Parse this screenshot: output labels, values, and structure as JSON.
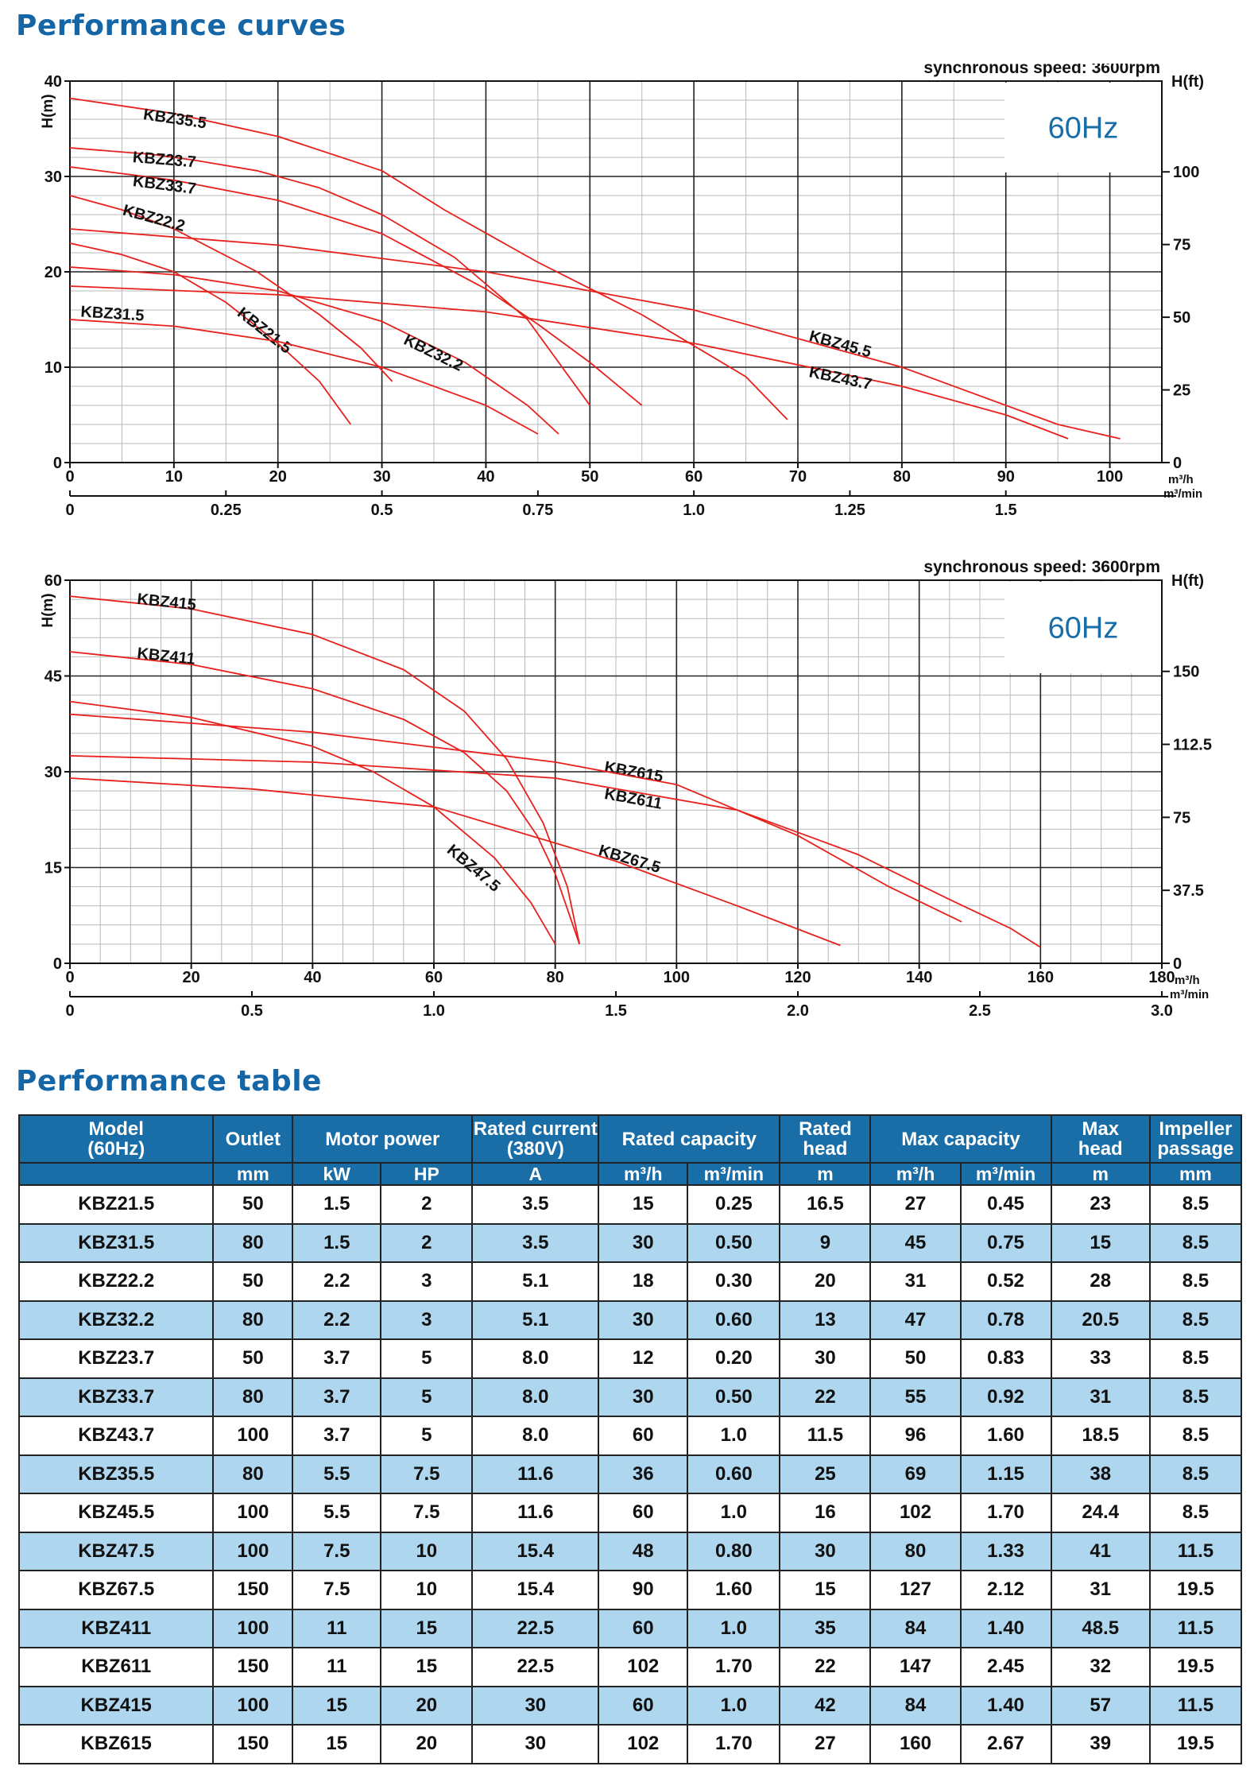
{
  "titles": {
    "curves": "Performance curves",
    "table": "Performance table"
  },
  "chart_data": [
    {
      "type": "line",
      "badge": "60Hz",
      "note": "synchronous speed: 3600rpm",
      "ylabel": "H(m)",
      "y2label": "H(ft)",
      "xunit": "m³/h",
      "x2unit": "m³/min",
      "xlim": [
        0,
        105
      ],
      "ylim": [
        0,
        40
      ],
      "xticks": [
        0,
        10,
        20,
        30,
        40,
        50,
        60,
        70,
        80,
        90,
        100
      ],
      "yticks": [
        0,
        10,
        20,
        30,
        40
      ],
      "y2ticks": [
        0,
        25,
        50,
        75,
        100
      ],
      "x2ticks": [
        0,
        0.25,
        0.5,
        0.75,
        1.0,
        1.25,
        1.5
      ],
      "x2tick_labels": [
        "0",
        "0.25",
        "0.5",
        "0.75",
        "1.0",
        "1.25",
        "1.5"
      ],
      "grid": true,
      "series": [
        {
          "name": "KBZ35.5",
          "x": [
            0,
            10,
            20,
            30,
            36,
            45,
            55,
            65,
            69
          ],
          "y": [
            38.2,
            36.6,
            34.2,
            30.6,
            26.5,
            21.0,
            15.5,
            9.0,
            4.5
          ],
          "label_pos": [
            7,
            36
          ]
        },
        {
          "name": "KBZ23.7",
          "x": [
            0,
            8,
            12,
            18,
            24,
            30,
            37,
            44,
            50
          ],
          "y": [
            33,
            32.3,
            31.7,
            30.6,
            28.8,
            26.0,
            21.5,
            15.0,
            6.0
          ],
          "label_pos": [
            6,
            31.5
          ]
        },
        {
          "name": "KBZ33.7",
          "x": [
            0,
            10,
            20,
            30,
            40,
            45,
            50,
            55
          ],
          "y": [
            31,
            29.6,
            27.5,
            24.0,
            18.2,
            14.5,
            10.5,
            6.0
          ],
          "label_pos": [
            6,
            29
          ]
        },
        {
          "name": "KBZ22.2",
          "x": [
            0,
            5,
            10,
            18,
            24,
            28,
            31
          ],
          "y": [
            28,
            26.5,
            24.5,
            20.0,
            15.5,
            12.0,
            8.5
          ],
          "label_pos": [
            5,
            26
          ]
        },
        {
          "name": "KBZ21.5",
          "x": [
            0,
            5,
            10,
            15,
            20,
            24,
            27
          ],
          "y": [
            23,
            21.8,
            20.0,
            16.8,
            12.5,
            8.5,
            4.0
          ],
          "label_pos": [
            16,
            15.5
          ]
        },
        {
          "name": "KBZ31.5",
          "x": [
            0,
            10,
            20,
            30,
            40,
            45
          ],
          "y": [
            15,
            14.3,
            12.7,
            10.0,
            6.0,
            3.0
          ],
          "label_pos": [
            1,
            15.3
          ]
        },
        {
          "name": "KBZ32.2",
          "x": [
            0,
            10,
            20,
            30,
            38,
            44,
            47
          ],
          "y": [
            20.5,
            19.7,
            18.0,
            14.8,
            10.5,
            6.0,
            3.0
          ],
          "label_pos": [
            32,
            12.5
          ]
        },
        {
          "name": "KBZ45.5",
          "x": [
            0,
            20,
            40,
            60,
            80,
            95,
            101
          ],
          "y": [
            24.5,
            22.8,
            20.0,
            16.0,
            10.0,
            4.0,
            2.5
          ],
          "label_pos": [
            71,
            12.8
          ]
        },
        {
          "name": "KBZ43.7",
          "x": [
            0,
            20,
            40,
            60,
            80,
            90,
            96
          ],
          "y": [
            18.5,
            17.6,
            15.8,
            12.5,
            8.0,
            5.0,
            2.5
          ],
          "label_pos": [
            71,
            9.0
          ]
        }
      ]
    },
    {
      "type": "line",
      "badge": "60Hz",
      "note": "synchronous speed: 3600rpm",
      "ylabel": "H(m)",
      "y2label": "H(ft)",
      "xunit": "m³/h",
      "x2unit": "m³/min",
      "xlim": [
        0,
        180
      ],
      "ylim": [
        0,
        60
      ],
      "xticks": [
        0,
        20,
        40,
        60,
        80,
        100,
        120,
        140,
        160,
        180
      ],
      "yticks": [
        0,
        15,
        30,
        45,
        60
      ],
      "y2ticks": [
        0,
        37.5,
        75,
        112.5,
        150
      ],
      "x2ticks": [
        0,
        0.5,
        1.0,
        1.5,
        2.0,
        2.5,
        3.0
      ],
      "x2tick_labels": [
        "0",
        "0.5",
        "1.0",
        "1.5",
        "2.0",
        "2.5",
        "3.0"
      ],
      "grid": true,
      "series": [
        {
          "name": "KBZ415",
          "x": [
            0,
            20,
            40,
            55,
            65,
            72,
            78,
            82,
            84
          ],
          "y": [
            57.5,
            55.5,
            51.5,
            46.0,
            39.5,
            32.0,
            22.0,
            12.0,
            3.0
          ],
          "label_pos": [
            11,
            56.3
          ]
        },
        {
          "name": "KBZ411",
          "x": [
            0,
            20,
            40,
            55,
            65,
            72,
            77,
            80,
            84
          ],
          "y": [
            48.8,
            46.8,
            43.0,
            38.2,
            33.0,
            27.0,
            20.0,
            14.0,
            3.0
          ],
          "label_pos": [
            11,
            47.8
          ]
        },
        {
          "name": "KBZ47.5",
          "x": [
            0,
            20,
            40,
            50,
            60,
            70,
            76,
            80
          ],
          "y": [
            41,
            38.5,
            34.0,
            30.0,
            24.5,
            16.5,
            9.5,
            3.0
          ],
          "label_pos": [
            62,
            17.5
          ]
        },
        {
          "name": "KBZ615",
          "x": [
            0,
            40,
            80,
            110,
            130,
            145,
            155,
            160
          ],
          "y": [
            32.5,
            31.5,
            29.0,
            24.0,
            17.0,
            10.0,
            5.5,
            2.5
          ],
          "label_pos": [
            88,
            30.0
          ]
        },
        {
          "name": "KBZ611",
          "x": [
            0,
            40,
            80,
            100,
            120,
            135,
            147
          ],
          "y": [
            39,
            36.2,
            31.5,
            28.0,
            20.0,
            12.0,
            6.5
          ],
          "label_pos": [
            88,
            25.8
          ]
        },
        {
          "name": "KBZ67.5",
          "x": [
            0,
            30,
            60,
            90,
            110,
            127
          ],
          "y": [
            29,
            27.3,
            24.5,
            16.0,
            9.0,
            2.8
          ],
          "label_pos": [
            87,
            17.0
          ]
        }
      ]
    }
  ],
  "table": {
    "headers_top": [
      "Model\n(60Hz)",
      "Outlet",
      "Motor power",
      "Rated current\n(380V)",
      "Rated capacity",
      "Rated\nhead",
      "Max capacity",
      "Max\nhead",
      "Impeller\npassage"
    ],
    "headers_units": [
      "mm",
      "kW",
      "HP",
      "A",
      "m³/h",
      "m³/min",
      "m",
      "m³/h",
      "m³/min",
      "m",
      "mm"
    ],
    "rows": [
      [
        "KBZ21.5",
        "50",
        "1.5",
        "2",
        "3.5",
        "15",
        "0.25",
        "16.5",
        "27",
        "0.45",
        "23",
        "8.5"
      ],
      [
        "KBZ31.5",
        "80",
        "1.5",
        "2",
        "3.5",
        "30",
        "0.50",
        "9",
        "45",
        "0.75",
        "15",
        "8.5"
      ],
      [
        "KBZ22.2",
        "50",
        "2.2",
        "3",
        "5.1",
        "18",
        "0.30",
        "20",
        "31",
        "0.52",
        "28",
        "8.5"
      ],
      [
        "KBZ32.2",
        "80",
        "2.2",
        "3",
        "5.1",
        "30",
        "0.60",
        "13",
        "47",
        "0.78",
        "20.5",
        "8.5"
      ],
      [
        "KBZ23.7",
        "50",
        "3.7",
        "5",
        "8.0",
        "12",
        "0.20",
        "30",
        "50",
        "0.83",
        "33",
        "8.5"
      ],
      [
        "KBZ33.7",
        "80",
        "3.7",
        "5",
        "8.0",
        "30",
        "0.50",
        "22",
        "55",
        "0.92",
        "31",
        "8.5"
      ],
      [
        "KBZ43.7",
        "100",
        "3.7",
        "5",
        "8.0",
        "60",
        "1.0",
        "11.5",
        "96",
        "1.60",
        "18.5",
        "8.5"
      ],
      [
        "KBZ35.5",
        "80",
        "5.5",
        "7.5",
        "11.6",
        "36",
        "0.60",
        "25",
        "69",
        "1.15",
        "38",
        "8.5"
      ],
      [
        "KBZ45.5",
        "100",
        "5.5",
        "7.5",
        "11.6",
        "60",
        "1.0",
        "16",
        "102",
        "1.70",
        "24.4",
        "8.5"
      ],
      [
        "KBZ47.5",
        "100",
        "7.5",
        "10",
        "15.4",
        "48",
        "0.80",
        "30",
        "80",
        "1.33",
        "41",
        "11.5"
      ],
      [
        "KBZ67.5",
        "150",
        "7.5",
        "10",
        "15.4",
        "90",
        "1.60",
        "15",
        "127",
        "2.12",
        "31",
        "19.5"
      ],
      [
        "KBZ411",
        "100",
        "11",
        "15",
        "22.5",
        "60",
        "1.0",
        "35",
        "84",
        "1.40",
        "48.5",
        "11.5"
      ],
      [
        "KBZ611",
        "150",
        "11",
        "15",
        "22.5",
        "102",
        "1.70",
        "22",
        "147",
        "2.45",
        "32",
        "19.5"
      ],
      [
        "KBZ415",
        "100",
        "15",
        "20",
        "30",
        "60",
        "1.0",
        "42",
        "84",
        "1.40",
        "57",
        "11.5"
      ],
      [
        "KBZ615",
        "150",
        "15",
        "20",
        "30",
        "102",
        "1.70",
        "27",
        "160",
        "2.67",
        "39",
        "19.5"
      ]
    ]
  },
  "colors": {
    "title": "#1566a6",
    "curve": "#e8201c",
    "header_bg": "#1a6ea8",
    "row_alt": "#aed6ee",
    "badge_text": "#1a6ea8"
  }
}
